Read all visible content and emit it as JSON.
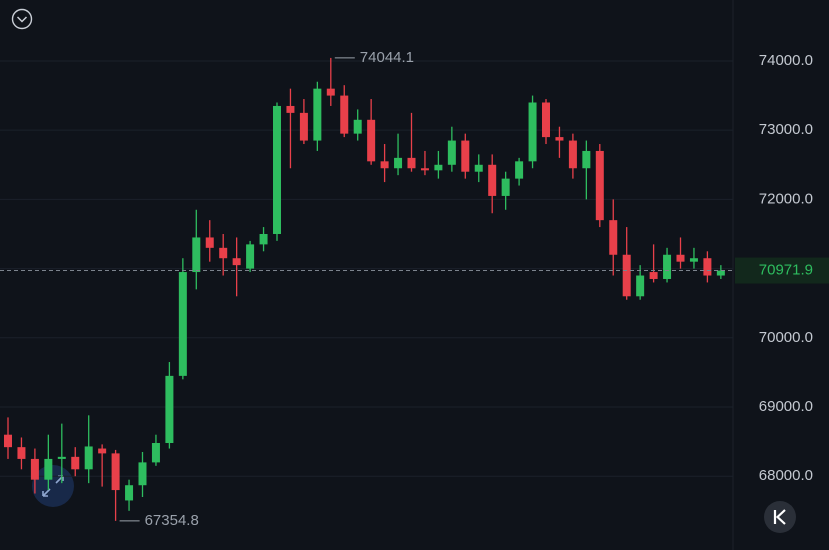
{
  "chart_data": {
    "type": "candlestick",
    "up_color": "#2ebd5f",
    "down_color": "#e8404a",
    "ylim": [
      66934,
      74881
    ],
    "yticks": [
      {
        "value": 68000,
        "label": "68000.0"
      },
      {
        "value": 69000,
        "label": "69000.0"
      },
      {
        "value": 70000,
        "label": "70000.0"
      },
      {
        "value": 71000,
        "label": "71000.0"
      },
      {
        "value": 72000,
        "label": "72000.0"
      },
      {
        "value": 73000,
        "label": "73000.0"
      },
      {
        "value": 74000,
        "label": "74000.0"
      }
    ],
    "grid": true,
    "high_label": 74044.1,
    "low_label": 67354.8,
    "last_price": 70971.9,
    "open": [
      68600,
      68420,
      68250,
      67950,
      68250,
      68280,
      68100,
      68400,
      68330,
      67650,
      67870,
      68200,
      68480,
      69450,
      70950,
      71450,
      71300,
      71150,
      71000,
      71350,
      71500,
      73350,
      73250,
      72850,
      73600,
      73500,
      72950,
      73150,
      72550,
      72450,
      72600,
      72450,
      72420,
      72500,
      72850,
      72400,
      72500,
      72050,
      72300,
      72550,
      73400,
      72900,
      72850,
      72450,
      72700,
      71700,
      71200,
      70600,
      70950,
      70850,
      71200,
      71100,
      71150,
      70900
    ],
    "high": [
      68850,
      68560,
      68400,
      68600,
      68760,
      68420,
      68880,
      68460,
      68380,
      67950,
      68350,
      68600,
      69650,
      71150,
      71850,
      71700,
      71500,
      71450,
      71400,
      71600,
      73400,
      73600,
      73450,
      73700,
      74044.1,
      73650,
      73300,
      73450,
      72800,
      72950,
      73250,
      72700,
      72700,
      73050,
      72950,
      72650,
      72650,
      72400,
      72600,
      73500,
      73450,
      73050,
      72950,
      72850,
      72800,
      72000,
      71600,
      71050,
      71350,
      71300,
      71450,
      71300,
      71250,
      71050
    ],
    "low": [
      68250,
      68100,
      67750,
      67800,
      67900,
      68000,
      67900,
      67850,
      67354.8,
      67500,
      67700,
      68150,
      68400,
      69400,
      70700,
      71100,
      70900,
      70600,
      70950,
      71250,
      71400,
      72450,
      72800,
      72700,
      73350,
      72900,
      72850,
      72500,
      72250,
      72350,
      72400,
      72350,
      72300,
      72400,
      72300,
      72250,
      71800,
      71850,
      72200,
      72450,
      72800,
      72600,
      72300,
      72000,
      71600,
      70900,
      70550,
      70550,
      70800,
      70800,
      71000,
      71000,
      70800,
      70850
    ],
    "close": [
      68420,
      68250,
      67950,
      68250,
      68280,
      68100,
      68430,
      68330,
      67800,
      67870,
      68200,
      68480,
      69450,
      70950,
      71450,
      71300,
      71150,
      71050,
      71350,
      71500,
      73350,
      73250,
      72850,
      73600,
      73500,
      72950,
      73150,
      72550,
      72450,
      72600,
      72450,
      72420,
      72500,
      72850,
      72400,
      72500,
      72050,
      72300,
      72550,
      73400,
      72900,
      72850,
      72450,
      72700,
      71700,
      71200,
      70600,
      70900,
      70850,
      71200,
      71100,
      71150,
      70900,
      70971.9
    ]
  }
}
